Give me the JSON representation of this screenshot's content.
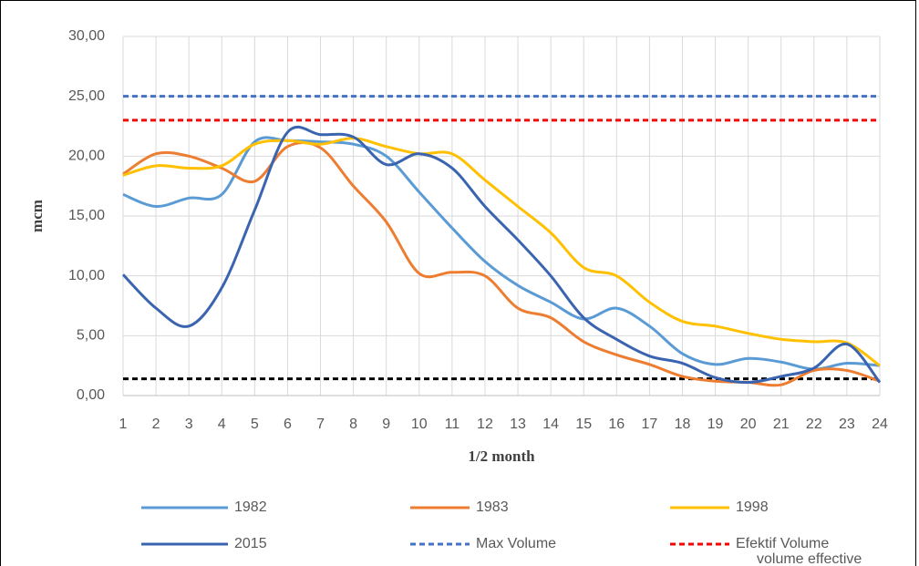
{
  "chart_data": {
    "type": "line",
    "x_label": "1/2 month",
    "y_label": "mcm",
    "categories": [
      "1",
      "2",
      "3",
      "4",
      "5",
      "6",
      "7",
      "8",
      "9",
      "10",
      "11",
      "12",
      "13",
      "14",
      "15",
      "16",
      "17",
      "18",
      "19",
      "20",
      "21",
      "22",
      "23",
      "24"
    ],
    "ylim": [
      0,
      30
    ],
    "yticks": [
      {
        "value": 0,
        "label": "0,00"
      },
      {
        "value": 5,
        "label": "5,00"
      },
      {
        "value": 10,
        "label": "10,00"
      },
      {
        "value": 15,
        "label": "15,00"
      },
      {
        "value": 20,
        "label": "20,00"
      },
      {
        "value": 25,
        "label": "25,00"
      },
      {
        "value": 30,
        "label": "30,00"
      }
    ],
    "grid": true,
    "legend": "bottom",
    "series": [
      {
        "name": "1982",
        "color": "#5b9bd5",
        "values": [
          16.8,
          15.8,
          16.5,
          16.8,
          21.2,
          21.3,
          21.2,
          21.0,
          20.0,
          17.0,
          14.0,
          11.2,
          9.2,
          7.8,
          6.4,
          7.3,
          5.8,
          3.5,
          2.6,
          3.1,
          2.8,
          2.2,
          2.7,
          2.5
        ]
      },
      {
        "name": "1983",
        "color": "#ed7d31",
        "values": [
          18.5,
          20.2,
          20.0,
          19.0,
          17.9,
          20.8,
          20.7,
          17.5,
          14.5,
          10.2,
          10.3,
          10.0,
          7.3,
          6.5,
          4.5,
          3.4,
          2.6,
          1.6,
          1.2,
          1.1,
          0.9,
          2.1,
          2.1,
          1.2
        ]
      },
      {
        "name": "1998",
        "color": "#ffc000",
        "values": [
          18.4,
          19.2,
          19.0,
          19.2,
          21.0,
          21.3,
          21.0,
          21.5,
          20.8,
          20.2,
          20.2,
          18.0,
          15.8,
          13.6,
          10.7,
          10.0,
          7.8,
          6.2,
          5.8,
          5.2,
          4.7,
          4.5,
          4.4,
          2.5
        ]
      },
      {
        "name": "2015",
        "color": "#3a64b0",
        "values": [
          10.1,
          7.3,
          5.8,
          9.0,
          15.5,
          22.0,
          21.8,
          21.6,
          19.3,
          20.2,
          19.0,
          15.8,
          13.0,
          10.0,
          6.5,
          4.7,
          3.3,
          2.7,
          1.5,
          1.1,
          1.6,
          2.3,
          4.3,
          1.1
        ]
      }
    ],
    "reference_lines": [
      {
        "name": "Max Volume",
        "color": "#4472c4",
        "value": 25
      },
      {
        "name": "Efektif Volume",
        "color": "#ff0000",
        "value": 23
      },
      {
        "name": "volume effective",
        "color": "#000000",
        "value": 1.4
      }
    ]
  }
}
